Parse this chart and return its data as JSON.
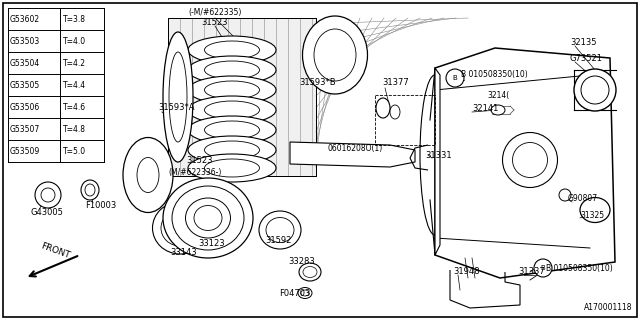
{
  "bg_color": "#ffffff",
  "fig_width": 6.4,
  "fig_height": 3.2,
  "dpi": 100,
  "table_rows": [
    [
      "G53602",
      "T=3.8"
    ],
    [
      "G53503",
      "T=4.0"
    ],
    [
      "G53504",
      "T=4.2"
    ],
    [
      "G53505",
      "T=4.4"
    ],
    [
      "G53506",
      "T=4.6"
    ],
    [
      "G53507",
      "T=4.8"
    ],
    [
      "G53509",
      "T=5.0"
    ]
  ],
  "watermark": "A170001118"
}
